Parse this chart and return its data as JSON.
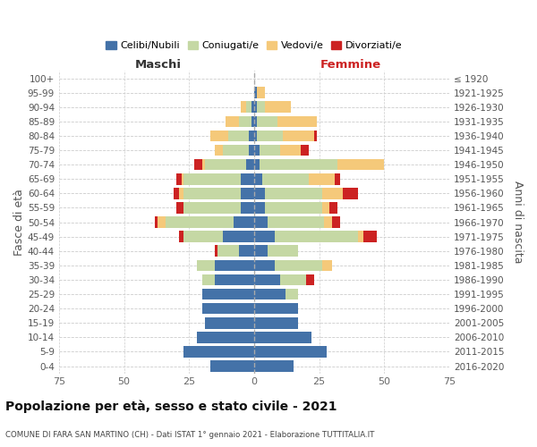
{
  "age_groups": [
    "0-4",
    "5-9",
    "10-14",
    "15-19",
    "20-24",
    "25-29",
    "30-34",
    "35-39",
    "40-44",
    "45-49",
    "50-54",
    "55-59",
    "60-64",
    "65-69",
    "70-74",
    "75-79",
    "80-84",
    "85-89",
    "90-94",
    "95-99",
    "100+"
  ],
  "birth_years": [
    "2016-2020",
    "2011-2015",
    "2006-2010",
    "2001-2005",
    "1996-2000",
    "1991-1995",
    "1986-1990",
    "1981-1985",
    "1976-1980",
    "1971-1975",
    "1966-1970",
    "1961-1965",
    "1956-1960",
    "1951-1955",
    "1946-1950",
    "1941-1945",
    "1936-1940",
    "1931-1935",
    "1926-1930",
    "1921-1925",
    "≤ 1920"
  ],
  "male": {
    "celibi": [
      17,
      27,
      22,
      19,
      20,
      20,
      15,
      15,
      6,
      12,
      8,
      5,
      5,
      5,
      3,
      2,
      2,
      1,
      1,
      0,
      0
    ],
    "coniugati": [
      0,
      0,
      0,
      0,
      0,
      0,
      5,
      7,
      8,
      15,
      26,
      22,
      22,
      22,
      16,
      10,
      8,
      5,
      2,
      0,
      0
    ],
    "vedovi": [
      0,
      0,
      0,
      0,
      0,
      0,
      0,
      0,
      0,
      0,
      3,
      0,
      2,
      1,
      1,
      3,
      7,
      5,
      2,
      0,
      0
    ],
    "divorziati": [
      0,
      0,
      0,
      0,
      0,
      0,
      0,
      0,
      1,
      2,
      1,
      3,
      2,
      2,
      3,
      0,
      0,
      0,
      0,
      0,
      0
    ]
  },
  "female": {
    "nubili": [
      15,
      28,
      22,
      17,
      17,
      12,
      10,
      8,
      5,
      8,
      5,
      4,
      4,
      3,
      2,
      2,
      1,
      1,
      1,
      1,
      0
    ],
    "coniugate": [
      0,
      0,
      0,
      0,
      0,
      5,
      10,
      18,
      12,
      32,
      22,
      22,
      22,
      18,
      30,
      8,
      10,
      8,
      3,
      0,
      0
    ],
    "vedove": [
      0,
      0,
      0,
      0,
      0,
      0,
      0,
      4,
      0,
      2,
      3,
      3,
      8,
      10,
      18,
      8,
      12,
      15,
      10,
      3,
      0
    ],
    "divorziate": [
      0,
      0,
      0,
      0,
      0,
      0,
      3,
      0,
      0,
      5,
      3,
      3,
      6,
      2,
      0,
      3,
      1,
      0,
      0,
      0,
      0
    ]
  },
  "colors": {
    "celibi_nubili": "#4472a8",
    "coniugati": "#c5d8a4",
    "vedovi": "#f5c97a",
    "divorziati": "#cc2222"
  },
  "xlim": 75,
  "title": "Popolazione per età, sesso e stato civile - 2021",
  "subtitle": "COMUNE DI FARA SAN MARTINO (CH) - Dati ISTAT 1° gennaio 2021 - Elaborazione TUTTITALIA.IT",
  "ylabel_left": "Fasce di età",
  "ylabel_right": "Anni di nascita",
  "legend_labels": [
    "Celibi/Nubili",
    "Coniugati/e",
    "Vedovi/e",
    "Divorziati/e"
  ]
}
